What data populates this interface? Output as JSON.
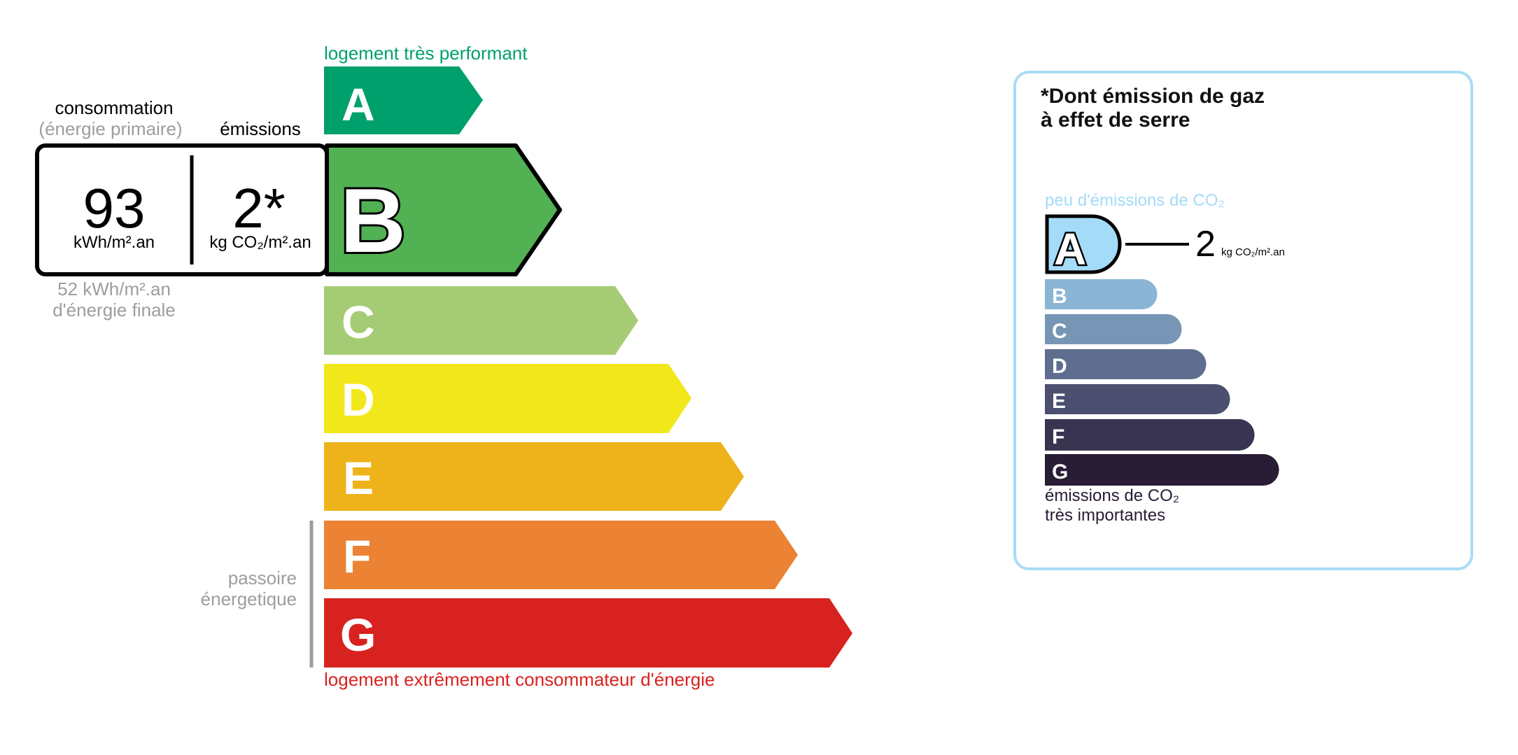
{
  "energy": {
    "top_label": "logement très performant",
    "bottom_label": "logement extrêmement consommateur d'énergie",
    "classes": [
      {
        "letter": "A",
        "color": "#00a06d"
      },
      {
        "letter": "B",
        "color": "#52b153"
      },
      {
        "letter": "C",
        "color": "#a5cc74"
      },
      {
        "letter": "D",
        "color": "#f2e71a"
      },
      {
        "letter": "E",
        "color": "#eeb31a"
      },
      {
        "letter": "F",
        "color": "#eb8234"
      },
      {
        "letter": "G",
        "color": "#d8221f"
      }
    ],
    "current_class": "B",
    "consumption_heading": "consommation",
    "consumption_subheading": "(énergie primaire)",
    "emissions_heading": "émissions",
    "consumption_value": "93",
    "consumption_unit": "kWh/m².an",
    "emissions_value": "2*",
    "emissions_unit": "kg CO₂/m².an",
    "final_energy_line1": "52 kWh/m².an",
    "final_energy_line2": "d'énergie finale",
    "passoire_line1": "passoire",
    "passoire_line2": "énergetique"
  },
  "ges": {
    "title_line1": "*Dont émission de gaz",
    "title_line2": "à effet de serre",
    "top_label": "peu d'émissions de CO₂",
    "bottom_line1": "émissions de CO₂",
    "bottom_line2": "très importantes",
    "current_class": "A",
    "value": "2",
    "unit": "kg CO₂/m².an",
    "classes": [
      {
        "letter": "A",
        "color": "#a4dbf8"
      },
      {
        "letter": "B",
        "color": "#8ab5d5"
      },
      {
        "letter": "C",
        "color": "#7796b5"
      },
      {
        "letter": "D",
        "color": "#5f6e8f"
      },
      {
        "letter": "E",
        "color": "#4c4f6f"
      },
      {
        "letter": "F",
        "color": "#393551"
      },
      {
        "letter": "G",
        "color": "#291c35"
      }
    ],
    "border_color": "#a8dcf5"
  }
}
